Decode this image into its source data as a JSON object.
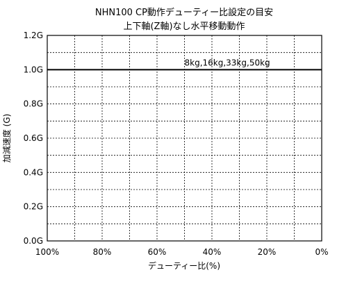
{
  "chart_data": {
    "type": "line",
    "title": "NHN100 CP動作デューティー比設定の目安",
    "subtitle": "上下軸(Z軸)なし水平移動動作",
    "xlabel": "デューティー比(%)",
    "ylabel": "加減速度 (G)",
    "x_ticks": [
      "100%",
      "80%",
      "60%",
      "40%",
      "20%",
      "0%"
    ],
    "y_ticks": [
      "0.0G",
      "0.2G",
      "0.4G",
      "0.6G",
      "0.8G",
      "1.0G",
      "1.2G"
    ],
    "xlim": [
      100,
      0
    ],
    "ylim": [
      0,
      1.2
    ],
    "grid": true,
    "series": [
      {
        "name": "8kg,16kg,33kg,50kg",
        "x": [
          100,
          0
        ],
        "y": [
          1.0,
          1.0
        ]
      }
    ]
  }
}
